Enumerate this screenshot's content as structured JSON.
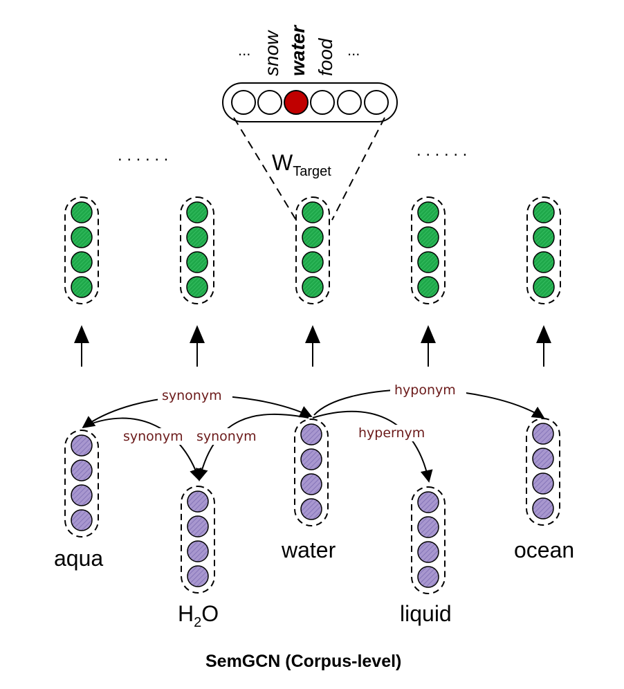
{
  "diagram": {
    "caption": "SemGCN (Corpus-level)",
    "weight_label": "W",
    "weight_subscript": "Target",
    "vocab_ellipsis_left": "...",
    "vocab_ellipsis_right": "...",
    "vocab_words": [
      "snow",
      "water",
      "food"
    ],
    "highlighted_word": "water",
    "dots_left": ". . . . . .",
    "dots_right": ". . . . . .",
    "nodes": [
      {
        "id": "aqua",
        "label": "aqua"
      },
      {
        "id": "h2o",
        "label": "H",
        "label_sub": "2",
        "label_tail": "O"
      },
      {
        "id": "water",
        "label": "water"
      },
      {
        "id": "liquid",
        "label": "liquid"
      },
      {
        "id": "ocean",
        "label": "ocean"
      }
    ],
    "edges": [
      {
        "from": "water",
        "to": "aqua",
        "relation": "synonym"
      },
      {
        "from": "aqua",
        "to": "h2o",
        "relation": "synonym"
      },
      {
        "from": "water",
        "to": "h2o",
        "relation": "synonym"
      },
      {
        "from": "water",
        "to": "liquid",
        "relation": "hypernym"
      },
      {
        "from": "water",
        "to": "ocean",
        "relation": "hyponym"
      }
    ],
    "colors": {
      "output_node": "#1fa84a",
      "input_node": "#a897cf",
      "selected_vocab": "#c00000",
      "relation_text": "#6b1a1a"
    }
  }
}
